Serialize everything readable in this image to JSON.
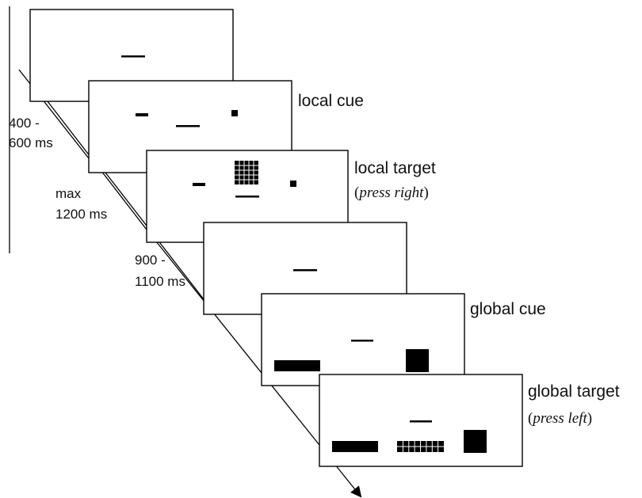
{
  "labels": {
    "screen2": "local cue",
    "screen3": "local target",
    "screen3_note_open": "(",
    "screen3_note_em": "press right",
    "screen3_note_close": ")",
    "screen5": "global cue",
    "screen6": "global target",
    "screen6_note_open": "(",
    "screen6_note_em": "press left",
    "screen6_note_close": ")"
  },
  "timings": {
    "t1_line1": "400 -",
    "t1_line2": "600 ms",
    "t2_line1": "max",
    "t2_line2": "1200 ms",
    "t3_line1": "900 -",
    "t3_line2": "1100 ms"
  },
  "colors": {
    "ink": "#000000",
    "background": "#ffffff"
  }
}
